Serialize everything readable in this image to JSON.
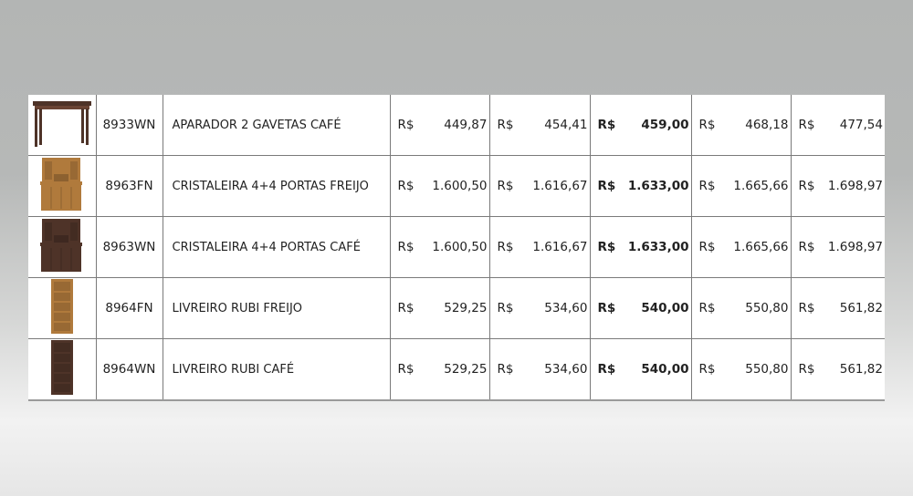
{
  "currency": "R$",
  "rows": [
    {
      "image": "console-table-dark",
      "code": "8933WN",
      "name": "APARADOR 2 GAVETAS CAFÉ",
      "prices": [
        "449,87",
        "454,41",
        "459,00",
        "468,18",
        "477,54"
      ]
    },
    {
      "image": "china-cabinet-light",
      "code": "8963FN",
      "name": "CRISTALEIRA 4+4 PORTAS FREIJO",
      "prices": [
        "1.600,50",
        "1.616,67",
        "1.633,00",
        "1.665,66",
        "1.698,97"
      ]
    },
    {
      "image": "china-cabinet-dark",
      "code": "8963WN",
      "name": "CRISTALEIRA 4+4 PORTAS CAFÉ",
      "prices": [
        "1.600,50",
        "1.616,67",
        "1.633,00",
        "1.665,66",
        "1.698,97"
      ]
    },
    {
      "image": "bookshelf-light",
      "code": "8964FN",
      "name": "LIVREIRO RUBI FREIJO",
      "prices": [
        "529,25",
        "534,60",
        "540,00",
        "550,80",
        "561,82"
      ]
    },
    {
      "image": "bookshelf-dark",
      "code": "8964WN",
      "name": "LIVREIRO RUBI CAFÉ",
      "prices": [
        "529,25",
        "534,60",
        "540,00",
        "550,80",
        "561,82"
      ]
    }
  ],
  "colors": {
    "cafe": "#4e3328",
    "freijo": "#b07a3c"
  }
}
